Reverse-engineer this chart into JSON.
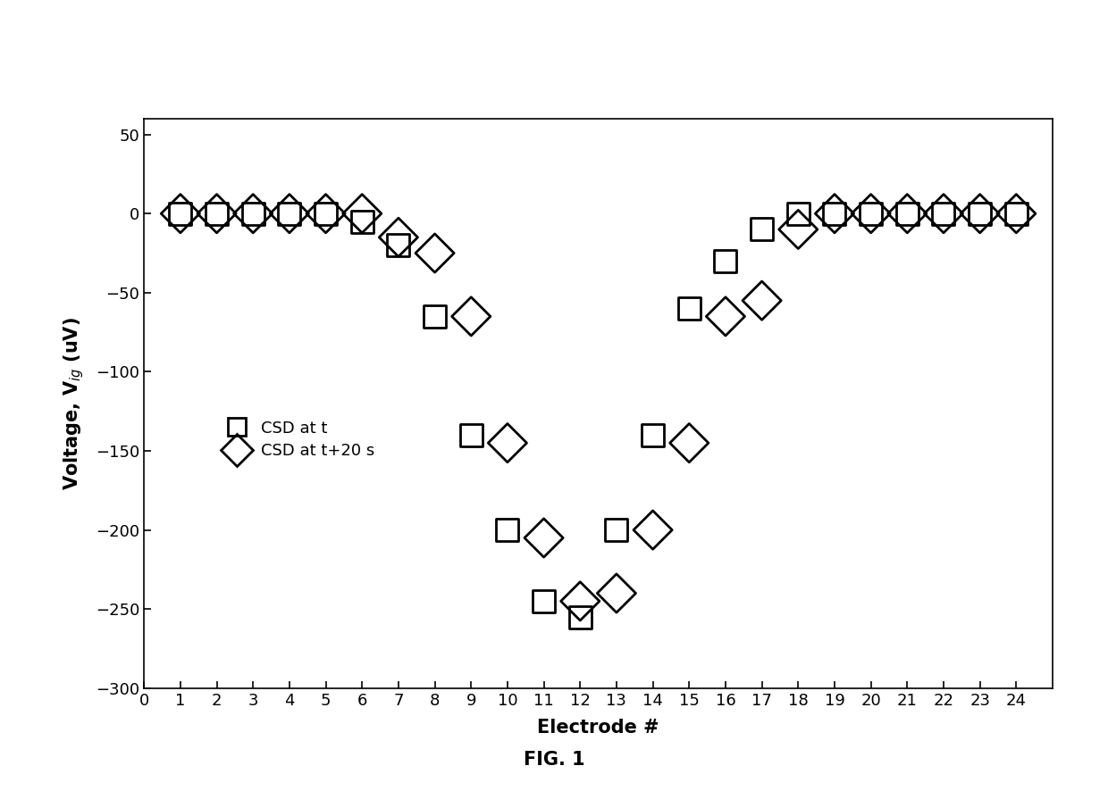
{
  "csd_t_x": [
    1,
    2,
    3,
    4,
    5,
    6,
    7,
    8,
    9,
    10,
    11,
    12,
    13,
    14,
    15,
    16,
    17,
    18,
    19,
    20,
    21,
    22,
    23,
    24
  ],
  "csd_t_y": [
    0,
    0,
    0,
    0,
    0,
    -5,
    -20,
    -65,
    -140,
    -200,
    -245,
    -255,
    -200,
    -140,
    -60,
    -30,
    -10,
    0,
    0,
    0,
    0,
    0,
    0,
    0
  ],
  "csd_t20_x": [
    1,
    2,
    3,
    4,
    5,
    6,
    7,
    8,
    9,
    10,
    11,
    12,
    13,
    14,
    15,
    16,
    17,
    18,
    19,
    20,
    21,
    22,
    23,
    24
  ],
  "csd_t20_y": [
    0,
    0,
    0,
    0,
    0,
    0,
    -15,
    -25,
    -65,
    -145,
    -205,
    -245,
    -240,
    -200,
    -145,
    -65,
    -55,
    -10,
    0,
    0,
    0,
    0,
    0,
    0
  ],
  "xlabel": "Electrode #",
  "ylabel": "Voltage, V",
  "ylabel_sub": "ig",
  "ylabel_unit": " (uV)",
  "xlim": [
    0,
    25
  ],
  "ylim": [
    -300,
    60
  ],
  "yticks": [
    50,
    0,
    -50,
    -100,
    -150,
    -200,
    -250,
    -300
  ],
  "xticks": [
    0,
    1,
    2,
    3,
    4,
    5,
    6,
    7,
    8,
    9,
    10,
    11,
    12,
    13,
    14,
    15,
    16,
    17,
    18,
    19,
    20,
    21,
    22,
    23,
    24
  ],
  "legend_label_t": "CSD at t",
  "legend_label_t20": "CSD at t+20 s",
  "fig_label": "FIG. 1",
  "background_color": "#ffffff",
  "marker_color": "#000000",
  "sq_markersize": 18,
  "dia_markersize": 22
}
